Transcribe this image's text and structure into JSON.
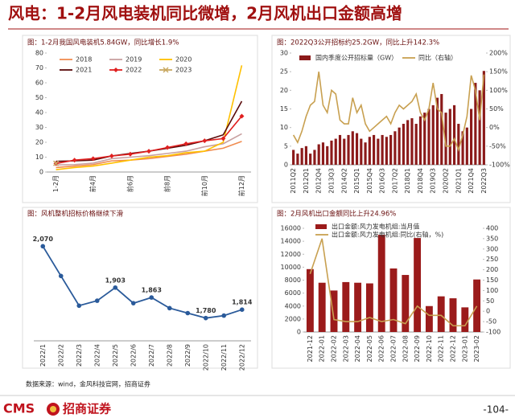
{
  "header": {
    "title": "风电：1-2月风电装机同比微增，2月风机出口金额高增"
  },
  "chart_data": [
    {
      "type": "line",
      "title": "图：1-2月我国风电装机5.84GW，同比增长1.9%",
      "categories": [
        "1-2月",
        null,
        "前4月",
        null,
        "前6月",
        null,
        "前8月",
        null,
        "前10月",
        null,
        "前12月"
      ],
      "ylim": [
        0,
        80
      ],
      "yticks": [
        0,
        10,
        20,
        30,
        40,
        50,
        60,
        70,
        80
      ],
      "legend": "top-left",
      "series": [
        {
          "name": "2018",
          "color": "#f08c50",
          "values": [
            3,
            4,
            5,
            7.5,
            8,
            9,
            10.5,
            12,
            14,
            16,
            20.6
          ]
        },
        {
          "name": "2019",
          "color": "#c8a0a0",
          "values": [
            4.8,
            5,
            6,
            9,
            10,
            11,
            12.5,
            14,
            17,
            19,
            25.7
          ]
        },
        {
          "name": "2020",
          "color": "#ffc000",
          "values": [
            1.6,
            3,
            4,
            6,
            8,
            10,
            11,
            13,
            14,
            20,
            71.7
          ]
        },
        {
          "name": "2021",
          "color": "#5a0a0a",
          "values": [
            7.2,
            7.5,
            8,
            10.8,
            12.5,
            14,
            16,
            18,
            21,
            25,
            47.6
          ]
        },
        {
          "name": "2022",
          "color": "#e02020",
          "marker": "diamond",
          "values": [
            5.7,
            8,
            9,
            10.8,
            12,
            14,
            16.5,
            19,
            21,
            22.5,
            37.6
          ]
        },
        {
          "name": "2023",
          "color": "#c8a860",
          "marker": "x",
          "values": [
            5.84,
            null,
            null,
            null,
            null,
            null,
            null,
            null,
            null,
            null,
            null
          ]
        }
      ]
    },
    {
      "type": "bar",
      "title": "图：2022Q3公开招标约25.2GW，同比上升142.3%",
      "categories": [
        "2011Q2",
        null,
        null,
        "2012Q1",
        null,
        null,
        "2012Q4",
        null,
        null,
        "2013Q3",
        null,
        null,
        "2014Q2",
        null,
        null,
        "2015Q1",
        null,
        null,
        "2015Q4",
        null,
        null,
        "2016Q3",
        null,
        null,
        "2017Q2",
        null,
        null,
        "2018Q1",
        null,
        null,
        "2018Q4",
        null,
        null,
        "2019Q3",
        null,
        null,
        "2020Q2",
        null,
        null,
        "2021Q1",
        null,
        null,
        "2021Q4",
        null,
        null,
        "2022Q3"
      ],
      "ylim": [
        0,
        30
      ],
      "yticks": [
        0,
        5,
        10,
        15,
        20,
        25,
        30
      ],
      "y2lim": [
        -100,
        200
      ],
      "y2ticks": [
        {
          "value": -100,
          "label": "-100%"
        },
        {
          "value": -50,
          "label": "-50%"
        },
        {
          "value": 0,
          "label": "0%"
        },
        {
          "value": 50,
          "label": "50%"
        },
        {
          "value": 100,
          "label": "100%"
        },
        {
          "value": 150,
          "label": "150%"
        },
        {
          "value": 200,
          "label": "200%"
        }
      ],
      "legend": "top",
      "series": [
        {
          "name": "国内季度公开招标量（GW）",
          "color": "#8b1a1a",
          "values": [
            4,
            3,
            4.5,
            5,
            3,
            4,
            5.5,
            6,
            5,
            6.5,
            7,
            8,
            7,
            8,
            9,
            8.5,
            7,
            6,
            7.5,
            8,
            7,
            8,
            7.5,
            8,
            9,
            10,
            11,
            12,
            12.5,
            11,
            13,
            14,
            15,
            16,
            18,
            19,
            14,
            15,
            16,
            11,
            9,
            10,
            15,
            22,
            20,
            25.2
          ]
        },
        {
          "name": "同比（右轴）",
          "color": "#c8a050",
          "type": "line",
          "axis": "y2",
          "values": [
            -20,
            -40,
            -10,
            30,
            60,
            70,
            150,
            60,
            40,
            100,
            90,
            20,
            10,
            10,
            80,
            40,
            60,
            10,
            -10,
            0,
            10,
            20,
            30,
            10,
            40,
            60,
            50,
            60,
            70,
            90,
            40,
            20,
            50,
            120,
            50,
            40,
            -50,
            -50,
            -30,
            -60,
            -20,
            30,
            140,
            100,
            20,
            142.3
          ]
        }
      ]
    },
    {
      "type": "line",
      "title": "图：风机整机招标价格继续下滑",
      "categories": [
        "2022/1",
        "2022/2",
        "2022/3",
        "2022/4",
        "2022/5",
        "2022/6",
        "2022/7",
        "2022/8",
        "2022/9",
        "2022/10",
        "2022/11",
        "2022/12"
      ],
      "values": [
        2070,
        1950,
        1830,
        1850,
        1903,
        1840,
        1863,
        1820,
        1800,
        1780,
        1790,
        1814
      ],
      "value_labels": [
        "2,070",
        null,
        null,
        null,
        "1,903",
        null,
        "1,863",
        null,
        null,
        "1,780",
        null,
        "1,814"
      ],
      "color": "#2a5a9a",
      "marker": "circle"
    },
    {
      "type": "bar",
      "title": "图：2月风机出口金额同比上升24.96%",
      "categories": [
        "2021-12",
        "2022-01",
        "2022-02",
        "2022-03",
        "2022-04",
        "2022-05",
        "2022-06",
        "2022-07",
        "2022-08",
        "2022-09",
        "2022-10",
        "2022-11",
        "2022-12",
        "2023-01",
        "2023-02"
      ],
      "ylim": [
        0,
        16000
      ],
      "yticks": [
        0,
        2000,
        4000,
        6000,
        8000,
        10000,
        12000,
        14000,
        16000
      ],
      "y2lim": [
        -100,
        400
      ],
      "y2ticks": [
        -100,
        -50,
        0,
        50,
        100,
        150,
        200,
        250,
        300,
        350,
        400
      ],
      "legend": "top",
      "series": [
        {
          "name": "出口金额:风力发电机组:当月值",
          "color": "#9b1b1b",
          "values": [
            9700,
            7600,
            6400,
            7700,
            7600,
            7500,
            15000,
            9800,
            8800,
            14500,
            4000,
            5500,
            5200,
            3800,
            8100
          ]
        },
        {
          "name": "出口金额:风力发电机组:同比(右轴，%)",
          "color": "#c8a050",
          "type": "line",
          "axis": "y2",
          "values": [
            180,
            350,
            -40,
            -50,
            -50,
            -30,
            -50,
            -40,
            -60,
            25,
            -20,
            -20,
            -70,
            -70,
            24.96
          ]
        }
      ]
    }
  ],
  "footer": {
    "source": "数据来源：wind，金风科技官网，招商证券",
    "logo": "CMS",
    "company": "招商证券",
    "page": "-104-"
  }
}
